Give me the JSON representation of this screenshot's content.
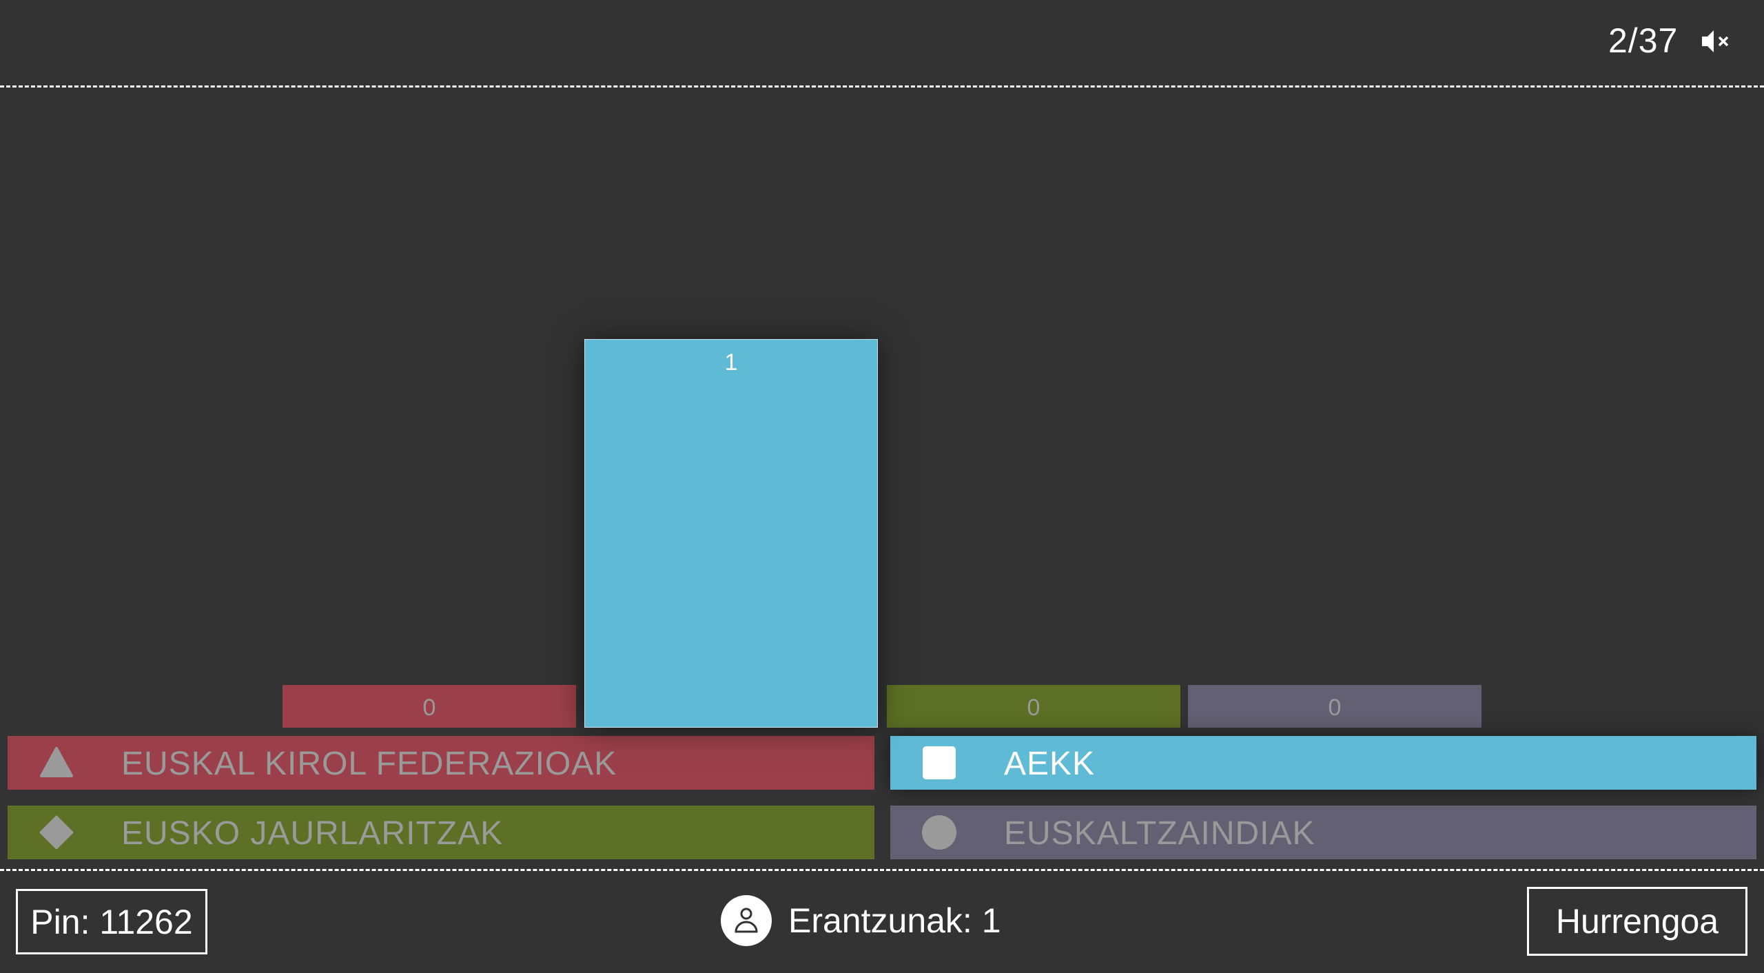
{
  "header": {
    "question_counter": "2/37",
    "mute_icon": "speaker-muted-icon"
  },
  "chart_data": {
    "type": "bar",
    "categories": [
      "EUSKAL KIROL FEDERAZIOAK",
      "AEKK",
      "EUSKO JAURLARITZAK",
      "EUSKALTZAINDIAK"
    ],
    "values": [
      0,
      1,
      0,
      0
    ],
    "value_labels": [
      "0",
      "1",
      "0",
      "0"
    ],
    "colors": [
      "#9b404a",
      "#5fbad6",
      "#5e7025",
      "#636073"
    ]
  },
  "answers": [
    {
      "label": "EUSKAL KIROL FEDERAZIOAK",
      "icon": "triangle-icon",
      "color": "#9b404a",
      "correct": false
    },
    {
      "label": "AEKK",
      "icon": "square-icon",
      "color": "#5fbad6",
      "correct": true
    },
    {
      "label": "EUSKO JAURLARITZAK",
      "icon": "diamond-icon",
      "color": "#5e7025",
      "correct": false
    },
    {
      "label": "EUSKALTZAINDIAK",
      "icon": "circle-icon",
      "color": "#636073",
      "correct": false
    }
  ],
  "footer": {
    "pin": "Pin: 11262",
    "answers_count": "Erantzunak: 1",
    "next_button": "Hurrengoa"
  }
}
